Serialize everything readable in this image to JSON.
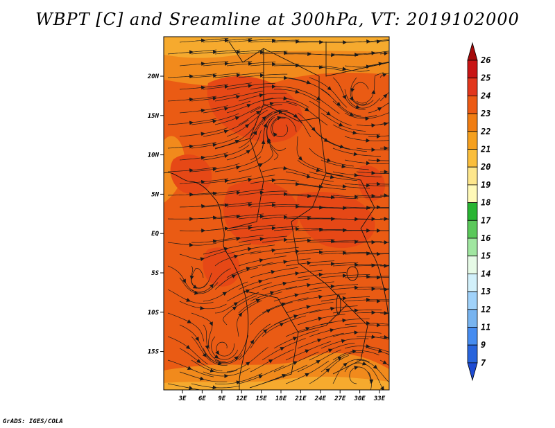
{
  "title": "WBPT [C] and Sreamline at 300hPa, VT: 2019102000",
  "credit": "GrADS: IGES/COLA",
  "map": {
    "lat_labels": [
      "20N",
      "15N",
      "10N",
      "5N",
      "EQ",
      "5S",
      "10S",
      "15S"
    ],
    "lon_labels": [
      "3E",
      "6E",
      "9E",
      "12E",
      "15E",
      "18E",
      "21E",
      "24E",
      "27E",
      "30E",
      "33E"
    ],
    "background_color": "#ea5b14",
    "warm_patch_color": "#e64816",
    "cool_patch_color": "#f18a1c",
    "edge_color": "#f6aa2e",
    "streamline_color": "#1a1a1a"
  },
  "colorbar": {
    "labels": [
      "26",
      "25",
      "24",
      "23",
      "22",
      "21",
      "20",
      "19",
      "18",
      "17",
      "16",
      "15",
      "14",
      "13",
      "12",
      "11",
      "9",
      "7"
    ],
    "colors": [
      "#a50a0a",
      "#c81414",
      "#e2361c",
      "#ec5a14",
      "#f07d12",
      "#f5a01e",
      "#fabe3c",
      "#fde68c",
      "#fff9b8",
      "#28b432",
      "#5ac85a",
      "#a0e6a0",
      "#e6fae6",
      "#d2f0fa",
      "#a0d2fa",
      "#78b4f0",
      "#468cf0",
      "#2864dc",
      "#1e4bd2"
    ]
  }
}
